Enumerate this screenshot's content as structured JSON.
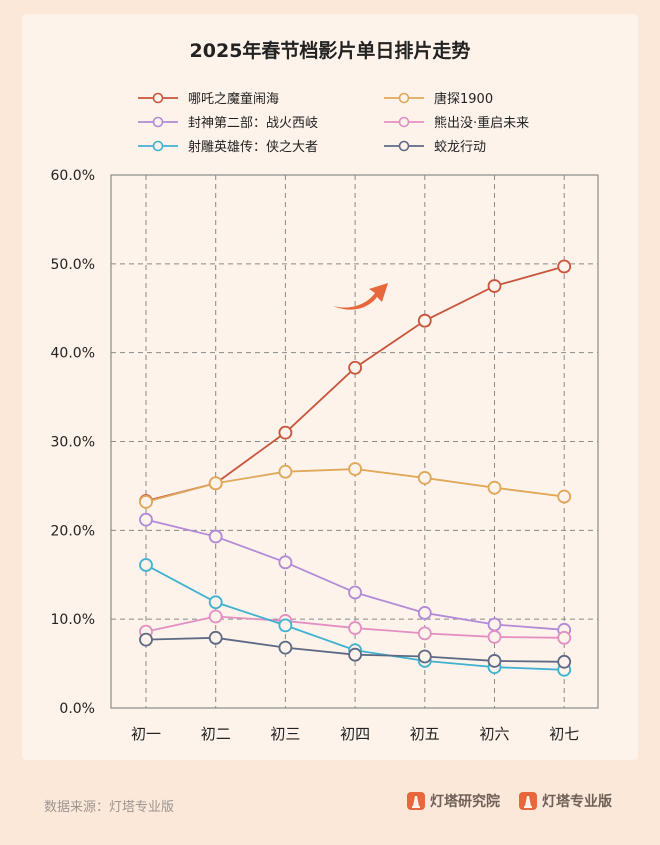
{
  "chart_data": {
    "type": "line",
    "title": "2025年春节档影片单日排片走势",
    "categories": [
      "初一",
      "初二",
      "初三",
      "初四",
      "初五",
      "初六",
      "初七"
    ],
    "ylim": [
      0,
      60
    ],
    "yticks": [
      "0.0%",
      "10.0%",
      "20.0%",
      "30.0%",
      "40.0%",
      "50.0%",
      "60.0%"
    ],
    "grid": true,
    "legend_position": "top",
    "series": [
      {
        "name": "哪吒之魔童闹海",
        "color": "#c8553d",
        "values": [
          23.3,
          25.3,
          31.0,
          38.3,
          43.6,
          47.5,
          49.7
        ]
      },
      {
        "name": "唐探1900",
        "color": "#e0a85a",
        "values": [
          23.2,
          25.3,
          26.6,
          26.9,
          25.9,
          24.8,
          23.8
        ]
      },
      {
        "name": "封神第二部：战火西岐",
        "color": "#b28ad8",
        "values": [
          21.2,
          19.3,
          16.4,
          13.0,
          10.7,
          9.4,
          8.8
        ]
      },
      {
        "name": "熊出没·重启未来",
        "color": "#e48fc3",
        "values": [
          8.6,
          10.3,
          9.8,
          9.0,
          8.4,
          8.0,
          7.9
        ]
      },
      {
        "name": "射雕英雄传：侠之大者",
        "color": "#3fb1d1",
        "values": [
          16.1,
          11.9,
          9.3,
          6.5,
          5.3,
          4.6,
          4.3
        ]
      },
      {
        "name": "蛟龙行动",
        "color": "#5e6a85",
        "values": [
          7.7,
          7.9,
          6.8,
          6.0,
          5.8,
          5.3,
          5.2
        ]
      }
    ]
  },
  "footer": {
    "source": "数据来源：灯塔专业版",
    "brand1": "灯塔研究院",
    "brand2": "灯塔专业版"
  },
  "colors": {
    "accent": "#e8683d",
    "background": "#fbe8d9",
    "card": "#fdf3ea"
  }
}
